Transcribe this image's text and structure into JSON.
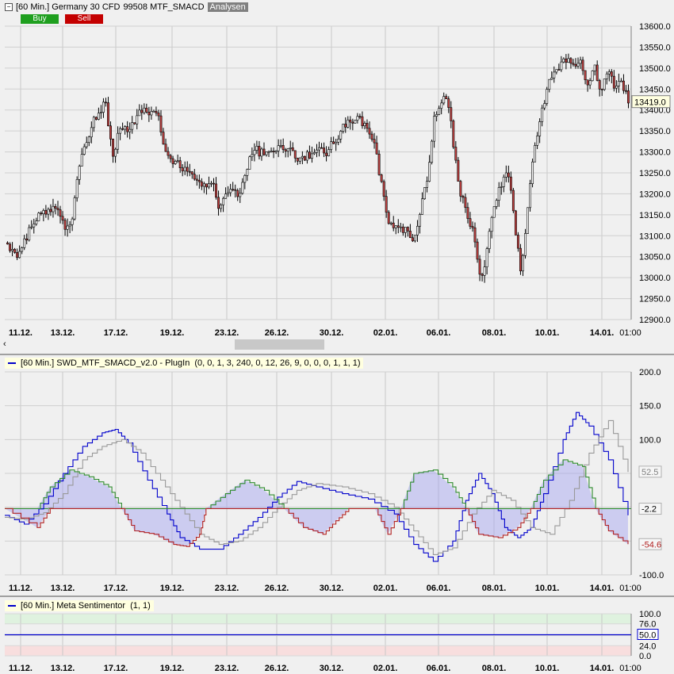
{
  "header": {
    "title": "[60 Min.] Germany 30 CFD",
    "subtitle": "99508 MTF_SMACD",
    "tab": "Analysen",
    "buy_label": "Buy",
    "sell_label": "Sell",
    "buy_color": "#1f9f1f",
    "sell_color": "#c40000"
  },
  "panes": {
    "indicator_title": "[60 Min.] SWD_MTF_SMACD_v2.0 - PlugIn",
    "indicator_params": "(0, 0, 1, 3, 240, 0, 12, 26, 9, 0, 0, 0, 1, 1, 1)",
    "sentiment_title": "[60 Min.] Meta Sentimentor",
    "sentiment_params": "(1, 1)"
  },
  "chart_data": [
    {
      "type": "candlestick",
      "x_labels": [
        "11.12.",
        "13.12.",
        "17.12.",
        "19.12.",
        "23.12.",
        "26.12.",
        "30.12.",
        "02.01.",
        "06.01.",
        "08.01.",
        "10.01.",
        "14.01.",
        "01:00"
      ],
      "y_ticks": [
        12900,
        12950,
        13000,
        13050,
        13100,
        13150,
        13200,
        13250,
        13300,
        13350,
        13400,
        13450,
        13500,
        13550,
        13600
      ],
      "y_tick_labels": [
        "12900.0",
        "12950.0",
        "13000.0",
        "13050.0",
        "13100.0",
        "13150.0",
        "13200.0",
        "13250.0",
        "13300.0",
        "13350.0",
        "13400.0",
        "13450.0",
        "13500.0",
        "13550.0",
        "13600.0"
      ],
      "ylim": [
        12900,
        13600
      ],
      "last_price": 13419.0,
      "last_price_label": "13419.0",
      "grid": true,
      "anchors": [
        [
          0,
          13080
        ],
        [
          2,
          13050
        ],
        [
          4,
          13130
        ],
        [
          6,
          13160
        ],
        [
          8,
          13165
        ],
        [
          9,
          13110
        ],
        [
          10,
          13140
        ],
        [
          11,
          13260
        ],
        [
          13,
          13370
        ],
        [
          15,
          13420
        ],
        [
          16,
          13290
        ],
        [
          17,
          13350
        ],
        [
          19,
          13360
        ],
        [
          20,
          13390
        ],
        [
          21,
          13400
        ],
        [
          23,
          13380
        ],
        [
          24,
          13290
        ],
        [
          26,
          13270
        ],
        [
          28,
          13240
        ],
        [
          30,
          13210
        ],
        [
          31,
          13230
        ],
        [
          32,
          13160
        ],
        [
          33,
          13210
        ],
        [
          35,
          13200
        ],
        [
          37,
          13310
        ],
        [
          38,
          13300
        ],
        [
          42,
          13310
        ],
        [
          44,
          13280
        ],
        [
          46,
          13300
        ],
        [
          48,
          13300
        ],
        [
          51,
          13370
        ],
        [
          53,
          13380
        ],
        [
          55,
          13320
        ],
        [
          56,
          13240
        ],
        [
          57,
          13140
        ],
        [
          58,
          13120
        ],
        [
          60,
          13110
        ],
        [
          61,
          13080
        ],
        [
          63,
          13240
        ],
        [
          64,
          13380
        ],
        [
          66,
          13440
        ],
        [
          67,
          13300
        ],
        [
          68,
          13200
        ],
        [
          69,
          13150
        ],
        [
          70,
          13100
        ],
        [
          71,
          12980
        ],
        [
          72,
          13080
        ],
        [
          73,
          13170
        ],
        [
          74,
          13220
        ],
        [
          75,
          13260
        ],
        [
          76,
          13130
        ],
        [
          77,
          13010
        ],
        [
          78,
          13180
        ],
        [
          79,
          13320
        ],
        [
          80,
          13390
        ],
        [
          81,
          13460
        ],
        [
          82,
          13500
        ],
        [
          84,
          13520
        ],
        [
          86,
          13510
        ],
        [
          87,
          13460
        ],
        [
          88,
          13500
        ],
        [
          89,
          13440
        ],
        [
          90,
          13500
        ],
        [
          91,
          13450
        ],
        [
          92,
          13470
        ],
        [
          93,
          13420
        ]
      ]
    },
    {
      "type": "line",
      "x_labels": [
        "11.12.",
        "13.12.",
        "17.12.",
        "19.12.",
        "23.12.",
        "26.12.",
        "30.12.",
        "02.01.",
        "06.01.",
        "08.01.",
        "10.01.",
        "14.01.",
        "01:00"
      ],
      "y_ticks": [
        -100,
        -50,
        0,
        50,
        100,
        150,
        200
      ],
      "y_tick_labels": [
        "-100.0",
        "-50.0",
        "0.0",
        "50.0",
        "100.0",
        "150.0",
        "200.0"
      ],
      "ylim": [
        -100,
        200
      ],
      "zero_line": -2.2,
      "value_labels": [
        "52.5",
        "-2.2",
        "-54.6"
      ],
      "series": [
        {
          "color": "#0000cc",
          "points": [
            [
              0,
              -12
            ],
            [
              3,
              -25
            ],
            [
              6,
              5
            ],
            [
              9,
              50
            ],
            [
              12,
              90
            ],
            [
              15,
              110
            ],
            [
              17,
              115
            ],
            [
              19,
              95
            ],
            [
              22,
              40
            ],
            [
              25,
              -10
            ],
            [
              27,
              -45
            ],
            [
              30,
              -62
            ],
            [
              33,
              -62
            ],
            [
              36,
              -40
            ],
            [
              39,
              -15
            ],
            [
              42,
              15
            ],
            [
              45,
              38
            ],
            [
              48,
              30
            ],
            [
              52,
              20
            ],
            [
              56,
              12
            ],
            [
              60,
              -10
            ],
            [
              63,
              -55
            ],
            [
              66,
              -80
            ],
            [
              69,
              -50
            ],
            [
              71,
              10
            ],
            [
              73,
              50
            ],
            [
              75,
              20
            ],
            [
              77,
              -30
            ],
            [
              79,
              -45
            ],
            [
              81,
              -30
            ],
            [
              83,
              20
            ],
            [
              86,
              100
            ],
            [
              88,
              140
            ],
            [
              90,
              120
            ],
            [
              93,
              70
            ],
            [
              96,
              -12
            ]
          ]
        },
        {
          "color": "#999999",
          "points": [
            [
              0,
              -15
            ],
            [
              3,
              -18
            ],
            [
              6,
              -8
            ],
            [
              9,
              20
            ],
            [
              12,
              70
            ],
            [
              15,
              90
            ],
            [
              18,
              100
            ],
            [
              21,
              80
            ],
            [
              24,
              40
            ],
            [
              27,
              0
            ],
            [
              30,
              -40
            ],
            [
              33,
              -55
            ],
            [
              36,
              -50
            ],
            [
              39,
              -30
            ],
            [
              42,
              0
            ],
            [
              45,
              25
            ],
            [
              48,
              35
            ],
            [
              52,
              30
            ],
            [
              56,
              20
            ],
            [
              60,
              0
            ],
            [
              63,
              -35
            ],
            [
              66,
              -70
            ],
            [
              69,
              -60
            ],
            [
              72,
              -10
            ],
            [
              75,
              25
            ],
            [
              78,
              10
            ],
            [
              81,
              -30
            ],
            [
              84,
              -40
            ],
            [
              87,
              10
            ],
            [
              90,
              80
            ],
            [
              93,
              128
            ],
            [
              96,
              52
            ]
          ]
        },
        {
          "color": "#2e8b2e",
          "fill": "rgba(160,160,240,0.45)",
          "points": [
            [
              0,
              -2
            ],
            [
              5,
              -2
            ],
            [
              7,
              30
            ],
            [
              10,
              55
            ],
            [
              13,
              45
            ],
            [
              16,
              30
            ],
            [
              18,
              -2
            ],
            [
              31,
              -2
            ],
            [
              34,
              20
            ],
            [
              37,
              40
            ],
            [
              40,
              25
            ],
            [
              43,
              -2
            ],
            [
              61,
              -2
            ],
            [
              63,
              50
            ],
            [
              66,
              55
            ],
            [
              69,
              30
            ],
            [
              71,
              -2
            ],
            [
              81,
              -2
            ],
            [
              83,
              40
            ],
            [
              86,
              70
            ],
            [
              89,
              60
            ],
            [
              91,
              -2
            ],
            [
              96,
              -2
            ]
          ]
        },
        {
          "color": "#b22222",
          "fill": "rgba(160,160,240,0.45)",
          "points": [
            [
              0,
              -2
            ],
            [
              5,
              -30
            ],
            [
              7,
              -2
            ],
            [
              18,
              -2
            ],
            [
              20,
              -35
            ],
            [
              23,
              -40
            ],
            [
              26,
              -55
            ],
            [
              28,
              -58
            ],
            [
              30,
              -40
            ],
            [
              31,
              -2
            ],
            [
              43,
              -2
            ],
            [
              46,
              -30
            ],
            [
              49,
              -40
            ],
            [
              51,
              -20
            ],
            [
              53,
              -2
            ],
            [
              57,
              -2
            ],
            [
              59,
              -40
            ],
            [
              61,
              -2
            ],
            [
              71,
              -2
            ],
            [
              73,
              -40
            ],
            [
              76,
              -45
            ],
            [
              79,
              -30
            ],
            [
              81,
              -2
            ],
            [
              91,
              -2
            ],
            [
              93,
              -35
            ],
            [
              96,
              -54.6
            ]
          ]
        }
      ]
    },
    {
      "type": "line",
      "x_labels": [
        "11.12.",
        "13.12.",
        "17.12.",
        "19.12.",
        "23.12.",
        "26.12.",
        "30.12.",
        "02.01.",
        "06.01.",
        "08.01.",
        "10.01.",
        "14.01.",
        "01:00"
      ],
      "y_ticks": [
        0,
        24,
        48,
        76,
        100
      ],
      "y_tick_labels": [
        "0.0",
        "24.0",
        "48.0",
        "76.0",
        "100.0"
      ],
      "ylim": [
        0,
        100
      ],
      "value": 50.0,
      "value_label": "50.0"
    }
  ]
}
